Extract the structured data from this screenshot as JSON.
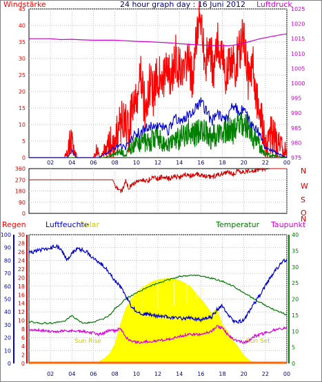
{
  "header": {
    "title": "24 hour graph day : 16 Juni 2012",
    "left_label": "Windstärke",
    "right_label": "Luftdruck"
  },
  "colors": {
    "wind": "#ff0000",
    "wind_avg": "#0000cc",
    "wind_low": "#008000",
    "pressure": "#cc00cc",
    "direction": "#cc0000",
    "humidity": "#0000cc",
    "temperature": "#007700",
    "dewpoint": "#dd00dd",
    "solar": "#ffff00",
    "rain": "#ff6600",
    "header_title": "#000080",
    "grid": "#c0c0c0"
  },
  "direction_labels": [
    "N",
    "W",
    "S",
    "O",
    "N"
  ],
  "bottom_labels": {
    "rain": "Regen",
    "humidity": "Luftfeuchte",
    "solar": "Solar",
    "temperature": "Temperatur",
    "dewpoint": "Taupunkt",
    "sunrise": "Sun Rise",
    "sunset": "Sun Set"
  },
  "chart_data": [
    {
      "type": "line",
      "x_ticks": [
        "02",
        "04",
        "06",
        "08",
        "10",
        "12",
        "14",
        "16",
        "18",
        "20",
        "22",
        "00"
      ],
      "xlim": [
        0,
        24
      ],
      "left_axis": {
        "ticks": [
          "0",
          "5",
          "10",
          "15",
          "20",
          "25",
          "30",
          "35",
          "40",
          "45"
        ],
        "ylim": [
          0,
          45
        ]
      },
      "right_axis": {
        "ticks": [
          "975",
          "980",
          "985",
          "990",
          "995",
          "1000",
          "1005",
          "1010",
          "1015",
          "1020",
          "1025"
        ],
        "ylim": [
          975,
          1025
        ]
      },
      "series": [
        {
          "name": "Windstärke",
          "axis": "left",
          "x": [
            0,
            2,
            3.3,
            3.6,
            3.8,
            4.1,
            4.5,
            5,
            5.5,
            6,
            6.3,
            6.6,
            7,
            7.5,
            8,
            8.3,
            8.7,
            9,
            9.3,
            9.7,
            10,
            10.4,
            10.8,
            11.2,
            11.6,
            12,
            12.4,
            12.8,
            13.2,
            13.6,
            14,
            14.4,
            14.8,
            15.2,
            15.6,
            16,
            16.4,
            16.8,
            17.2,
            17.6,
            18,
            18.4,
            18.8,
            19.2,
            19.6,
            20,
            20.4,
            20.8,
            21.2,
            21.6,
            22,
            22.5,
            23,
            23.5,
            24
          ],
          "y": [
            0,
            0,
            0,
            3,
            6,
            3,
            0,
            0,
            0,
            0,
            3,
            0,
            2,
            5,
            3,
            8,
            12,
            10,
            7,
            18,
            16,
            24,
            15,
            22,
            19,
            26,
            21,
            29,
            23,
            31,
            27,
            25,
            30,
            24,
            36,
            43,
            28,
            33,
            26,
            35,
            31,
            24,
            31,
            27,
            33,
            38,
            23,
            30,
            18,
            12,
            5,
            7,
            5,
            3,
            2
          ]
        },
        {
          "name": "",
          "axis": "left",
          "x": [
            0,
            3.6,
            4,
            4.4,
            6.5,
            7,
            7.5,
            8,
            8.5,
            9,
            9.5,
            10,
            11,
            12,
            13,
            13.5,
            14,
            15,
            15.5,
            16,
            16.5,
            17,
            17.5,
            18,
            18.5,
            19,
            19.5,
            20,
            20.5,
            21,
            21.5,
            22,
            24
          ],
          "y": [
            0,
            0,
            2,
            0,
            0,
            1,
            2,
            3,
            4,
            3,
            6,
            7,
            9,
            10,
            8,
            12,
            11,
            13,
            15,
            17,
            14,
            11,
            13,
            12,
            12,
            16,
            14,
            15,
            11,
            9,
            7,
            3,
            0
          ]
        },
        {
          "name": "",
          "axis": "left",
          "x": [
            0,
            7,
            8,
            8.5,
            9,
            9.5,
            10,
            11,
            12,
            13,
            14,
            15,
            15.5,
            16,
            17,
            18,
            18.5,
            19,
            19.5,
            20,
            20.5,
            21,
            21.5,
            22,
            24
          ],
          "y": [
            0,
            0,
            1,
            2,
            1,
            3,
            4,
            5,
            6,
            4,
            6,
            8,
            7,
            9,
            6,
            7,
            9,
            8,
            11,
            10,
            9,
            6,
            4,
            1,
            0
          ]
        },
        {
          "name": "Luftdruck",
          "axis": "right",
          "x": [
            0,
            1,
            2,
            3,
            4,
            5,
            6,
            7,
            8,
            9,
            10,
            11,
            12,
            13,
            14,
            15,
            16,
            17,
            18,
            18.5,
            19,
            19.5,
            20,
            20.5,
            21,
            21.5,
            22,
            22.5,
            23,
            23.5,
            24
          ],
          "y": [
            1015,
            1015,
            1015,
            1014.7,
            1014.8,
            1014.6,
            1014.5,
            1014.5,
            1014.5,
            1014.3,
            1014.1,
            1014,
            1013.8,
            1013.6,
            1013.3,
            1013.1,
            1012.9,
            1012.7,
            1012.7,
            1012.6,
            1012.8,
            1013.1,
            1013.5,
            1014,
            1014.5,
            1015,
            1015.3,
            1015.7,
            1016,
            1016.4,
            1016.6
          ]
        }
      ]
    },
    {
      "type": "scatter",
      "x_ticks": [
        "02",
        "04",
        "06",
        "08",
        "10",
        "12",
        "14",
        "16",
        "18",
        "20",
        "22",
        "00"
      ],
      "xlim": [
        0,
        24
      ],
      "y_ticks": [
        "0",
        "90",
        "180",
        "270",
        "360"
      ],
      "ylim": [
        0,
        360
      ],
      "series": [
        {
          "name": "",
          "x": [
            0,
            1,
            2,
            3,
            4,
            5,
            6,
            7,
            7.8,
            8,
            8.3,
            8.6,
            9,
            9.3,
            9.6,
            10,
            10.5,
            11,
            11.5,
            12,
            12.5,
            13,
            13.5,
            14,
            14.5,
            15,
            15.5,
            16,
            16.5,
            17,
            17.5,
            18,
            18.5,
            19,
            19.5,
            20,
            20.5,
            21,
            21.5,
            22,
            22.5,
            23,
            23.5,
            24
          ],
          "y": [
            270,
            270,
            270,
            270,
            270,
            270,
            270,
            270,
            270,
            230,
            190,
            170,
            260,
            200,
            240,
            250,
            270,
            260,
            290,
            280,
            300,
            280,
            300,
            290,
            310,
            300,
            320,
            310,
            300,
            290,
            310,
            320,
            330,
            320,
            340,
            330,
            340,
            345,
            350,
            355,
            360,
            360,
            360,
            360
          ]
        }
      ]
    },
    {
      "type": "line",
      "x_ticks": [
        "02",
        "04",
        "06",
        "08",
        "10",
        "12",
        "14",
        "16",
        "18",
        "20",
        "22",
        "00"
      ],
      "xlim": [
        0,
        24
      ],
      "axes": {
        "humidity": {
          "ticks": [
            "0",
            "10",
            "20",
            "30",
            "40",
            "50",
            "60",
            "70",
            "80",
            "90",
            "100"
          ],
          "ylim": [
            0,
            100
          ]
        },
        "rain": {
          "ticks": [
            "0",
            "2",
            "4",
            "6",
            "8",
            "10",
            "12",
            "14",
            "16",
            "18",
            "20",
            "22",
            "24",
            "26",
            "28",
            "30"
          ],
          "ylim": [
            0,
            30
          ]
        },
        "temperature": {
          "ticks": [
            "0",
            "5",
            "10",
            "15",
            "20",
            "25",
            "30",
            "35",
            "40"
          ],
          "ylim": [
            0,
            40
          ]
        }
      },
      "series": [
        {
          "name": "Luftfeuchte",
          "axis": "humidity",
          "x": [
            0,
            1,
            2,
            2.5,
            3,
            3.5,
            4,
            4.5,
            5,
            5.5,
            6,
            6.5,
            7,
            7.5,
            8,
            8.5,
            9,
            9.5,
            10,
            11,
            12,
            13,
            14,
            15,
            16,
            16.5,
            17,
            17.5,
            18,
            18.5,
            19,
            19.5,
            20,
            20.5,
            21,
            21.5,
            22,
            22.5,
            23,
            23.5,
            24
          ],
          "y": [
            86,
            88,
            90,
            91,
            89,
            80,
            86,
            89,
            88,
            86,
            81,
            79,
            75,
            70,
            64,
            60,
            52,
            45,
            40,
            38,
            37,
            36,
            35,
            35,
            34,
            35,
            36,
            42,
            45,
            38,
            33,
            32,
            34,
            40,
            47,
            53,
            60,
            67,
            73,
            78,
            81
          ]
        },
        {
          "name": "Temperatur",
          "axis": "temperature",
          "x": [
            0,
            1,
            2,
            3,
            3.5,
            4,
            4.5,
            5,
            6,
            7,
            7.5,
            8,
            9,
            10,
            11,
            12,
            13,
            14,
            15,
            15.5,
            16,
            17,
            18,
            19,
            20,
            21,
            22,
            23,
            24
          ],
          "y": [
            13,
            12.5,
            12.5,
            12.8,
            13.5,
            15,
            13.5,
            12.5,
            12.8,
            14,
            15,
            17,
            20,
            22,
            23.5,
            25,
            26,
            27,
            27.3,
            27.5,
            27.2,
            26.5,
            25.5,
            24,
            22,
            20,
            18,
            16.5,
            15
          ]
        },
        {
          "name": "Taupunkt",
          "axis": "temperature",
          "x": [
            0,
            1,
            2,
            3,
            4,
            5,
            6,
            6.5,
            7,
            7.5,
            8,
            8.5,
            9,
            9.5,
            10,
            11,
            12,
            13,
            14,
            15,
            16,
            17,
            17.5,
            18,
            18.5,
            19,
            19.5,
            20,
            20.5,
            21,
            22,
            23,
            24
          ],
          "y": [
            10.5,
            10.3,
            10,
            10,
            10.2,
            10,
            9.5,
            9,
            9.5,
            10.5,
            10,
            11,
            8,
            7,
            6.5,
            6.8,
            7,
            7.5,
            8.5,
            9,
            9,
            10,
            11.5,
            11,
            9,
            7.5,
            7,
            6.5,
            7,
            8.5,
            9.5,
            10.5,
            11
          ]
        },
        {
          "name": "Solar",
          "axis": "temperature",
          "x": [
            5.8,
            6.5,
            7,
            7.5,
            8,
            8.5,
            9,
            9.5,
            10,
            10.5,
            11,
            11.5,
            12,
            12.5,
            13,
            13.5,
            14,
            14.5,
            15,
            15.5,
            16,
            16.5,
            17,
            17.5,
            18,
            18.5,
            19,
            19.5,
            20,
            20.5,
            21
          ],
          "y": [
            0,
            0.5,
            1.5,
            3,
            6,
            12,
            17,
            20,
            22,
            23.5,
            24.5,
            25.5,
            26,
            26.3,
            26.5,
            26.2,
            25.8,
            25,
            24,
            22,
            20,
            18,
            15.5,
            17,
            12,
            10,
            7,
            5,
            2.5,
            1,
            0
          ]
        },
        {
          "name": "Regen",
          "axis": "rain",
          "x": [
            0,
            24
          ],
          "y": [
            0,
            0
          ]
        }
      ]
    }
  ]
}
